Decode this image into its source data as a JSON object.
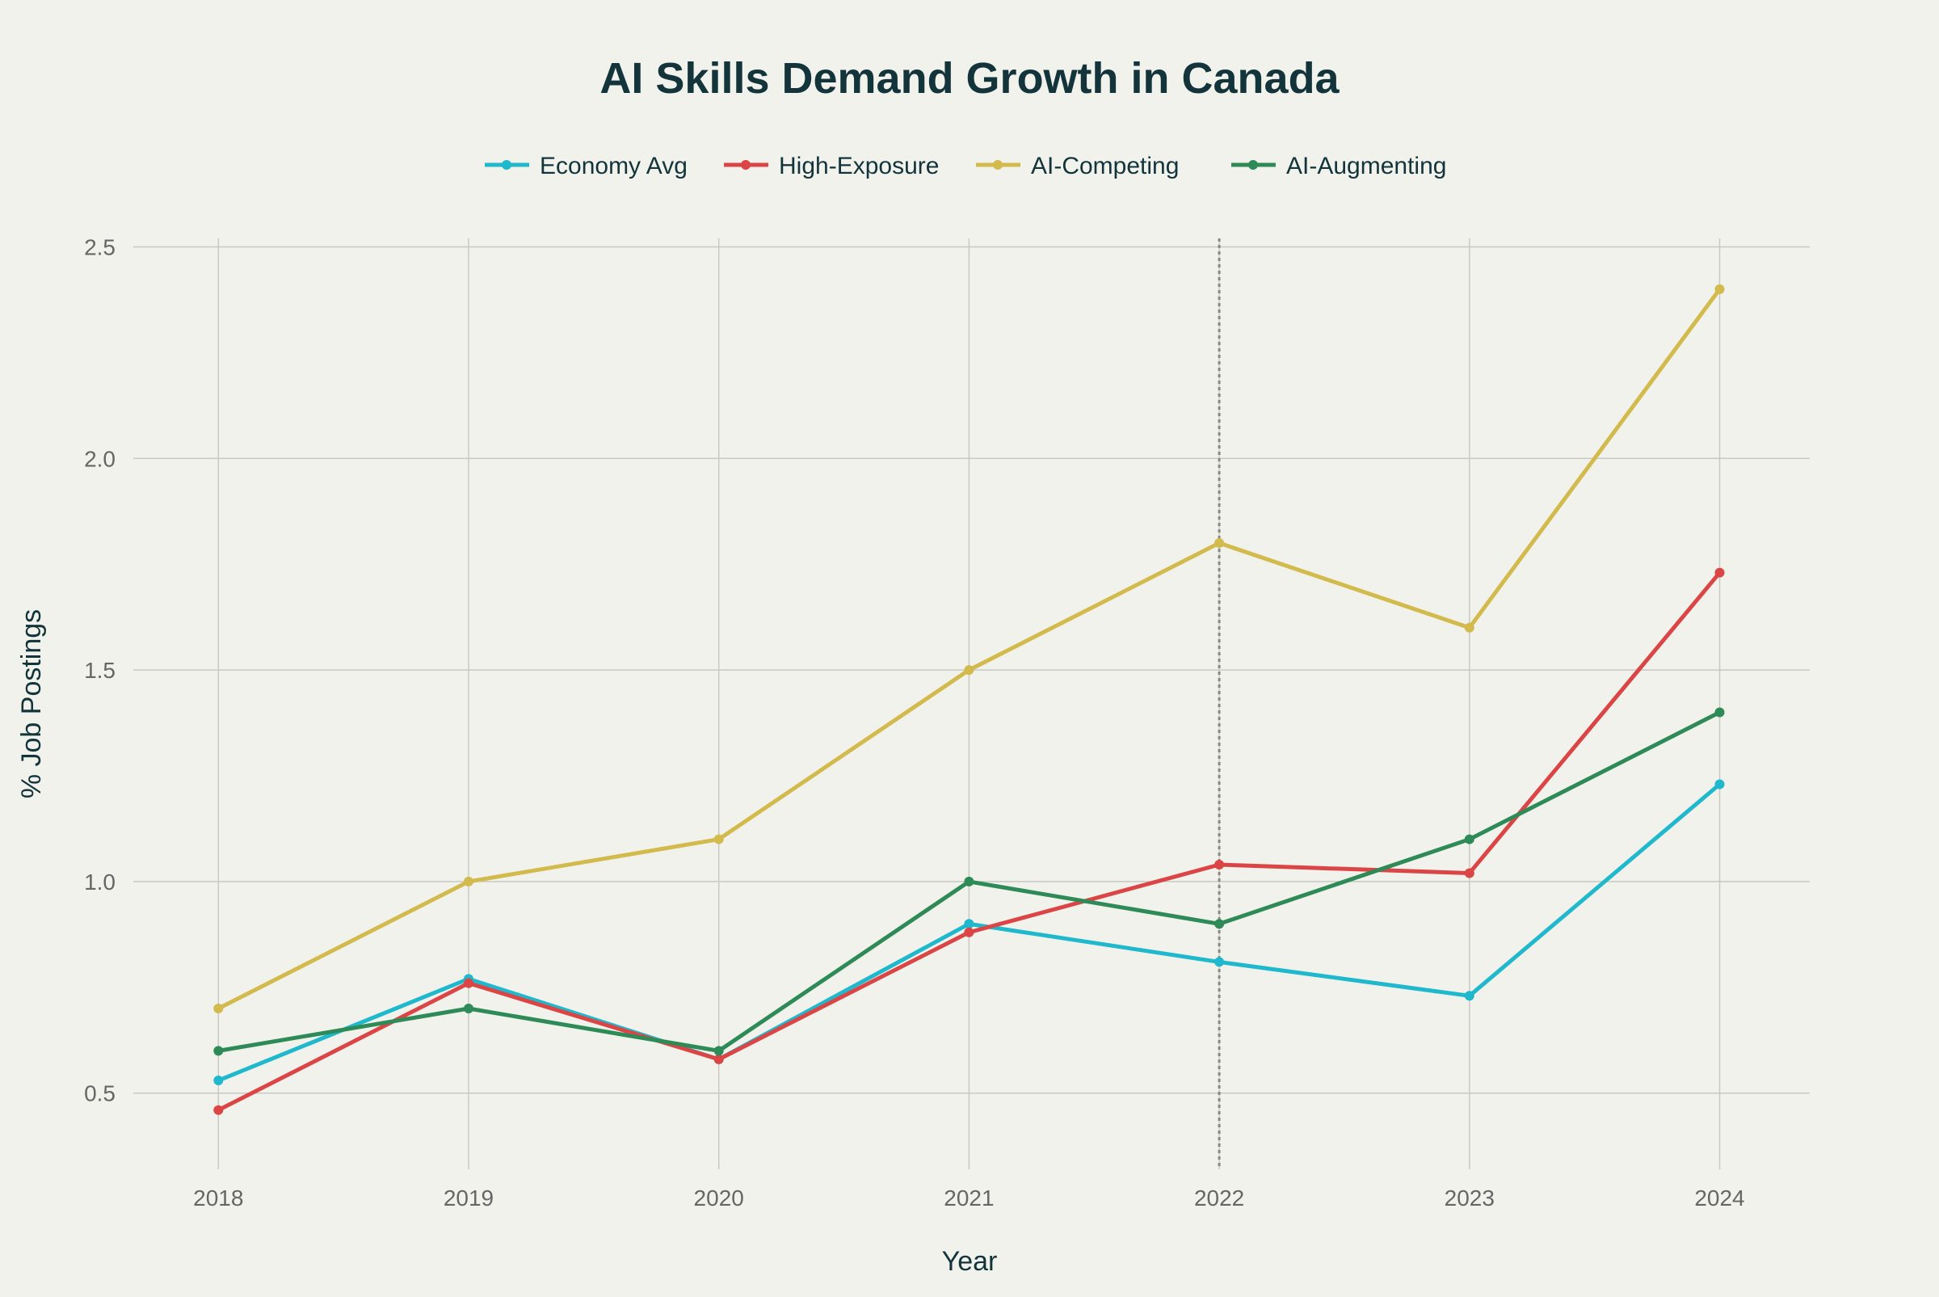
{
  "chart_data": {
    "type": "line",
    "title": "AI Skills Demand Growth in Canada",
    "xlabel": "Year",
    "ylabel": "% Job Postings",
    "x": [
      2018,
      2019,
      2020,
      2021,
      2022,
      2023,
      2024
    ],
    "xlim": [
      2017.66,
      2024.36
    ],
    "ylim": [
      0.32,
      2.52
    ],
    "yticks": [
      0.5,
      1.0,
      1.5,
      2.0,
      2.5
    ],
    "ytick_labels": [
      "0.5",
      "1.0",
      "1.5",
      "2.0",
      "2.5"
    ],
    "xtick_labels": [
      "2018",
      "2019",
      "2020",
      "2021",
      "2022",
      "2023",
      "2024"
    ],
    "grid": true,
    "legend_position": "top-center",
    "reference_line_x": 2022,
    "series": [
      {
        "name": "Economy Avg",
        "color": "#1fb8cd",
        "values": [
          0.53,
          0.77,
          0.58,
          0.9,
          0.81,
          0.73,
          1.23
        ]
      },
      {
        "name": "High-Exposure",
        "color": "#db4545",
        "values": [
          0.46,
          0.76,
          0.58,
          0.88,
          1.04,
          1.02,
          1.73
        ]
      },
      {
        "name": "AI-Competing",
        "color": "#d2ba4c",
        "values": [
          0.7,
          1.0,
          1.1,
          1.5,
          1.8,
          1.6,
          2.4
        ]
      },
      {
        "name": "AI-Augmenting",
        "color": "#2e8b57",
        "values": [
          0.6,
          0.7,
          0.6,
          1.0,
          0.9,
          1.1,
          1.4
        ]
      }
    ]
  }
}
